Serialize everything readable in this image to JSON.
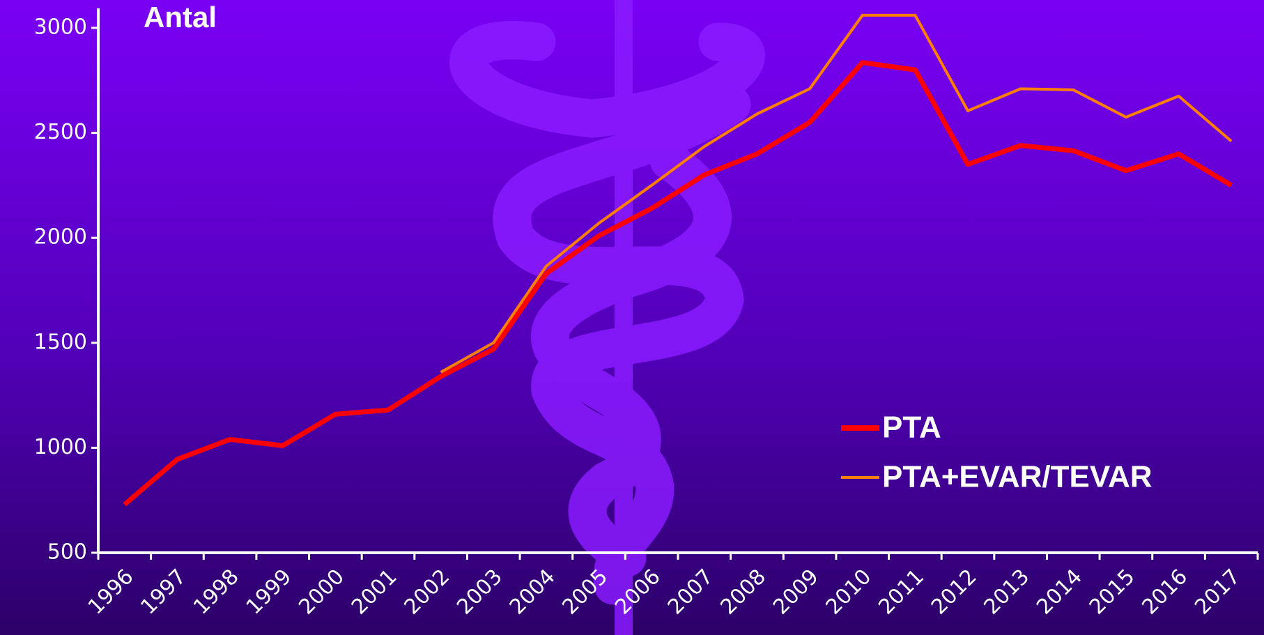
{
  "chart_data": {
    "type": "line",
    "y_label": "Antal",
    "categories": [
      "1996",
      "1997",
      "1998",
      "1999",
      "2000",
      "2001",
      "2002",
      "2003",
      "2004",
      "2005",
      "2006",
      "2007",
      "2008",
      "2009",
      "2010",
      "2011",
      "2012",
      "2013",
      "2014",
      "2015",
      "2016",
      "2017"
    ],
    "series": [
      {
        "name": "PTA",
        "color": "#ff0000",
        "values": [
          730,
          945,
          1040,
          1010,
          1160,
          1180,
          1340,
          1470,
          1830,
          2010,
          2140,
          2300,
          2400,
          2550,
          2835,
          2800,
          2350,
          2440,
          2415,
          2320,
          2400,
          2250
        ]
      },
      {
        "name": "PTA+EVAR/TEVAR",
        "color": "#ff8000",
        "values": [
          null,
          null,
          null,
          null,
          null,
          null,
          1360,
          1500,
          1865,
          2070,
          2250,
          2435,
          2590,
          2710,
          3060,
          3060,
          2605,
          2710,
          2705,
          2575,
          2675,
          2460
        ]
      }
    ],
    "ylim": [
      500,
      3000
    ],
    "yticks": [
      500,
      1000,
      1500,
      2000,
      2500,
      3000
    ]
  }
}
